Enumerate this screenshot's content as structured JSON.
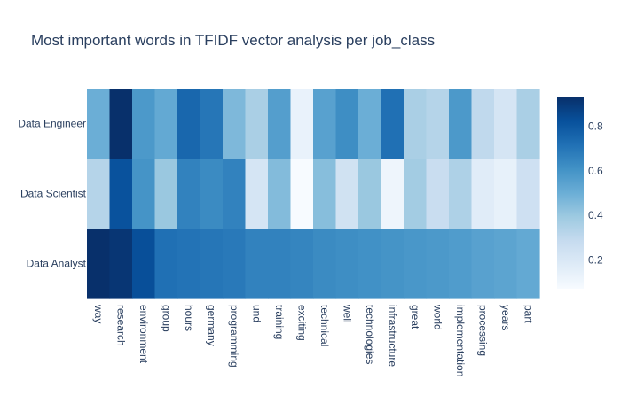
{
  "chart_data": {
    "type": "heatmap",
    "title": "Most important words in TFIDF vector analysis per job_class",
    "x": [
      "way",
      "research",
      "environment",
      "group",
      "hours",
      "germany",
      "programming",
      "und",
      "training",
      "exciting",
      "technical",
      "well",
      "technologies",
      "infrastructure",
      "great",
      "world",
      "implementation",
      "processing",
      "years",
      "part"
    ],
    "y": [
      "Data Engineer",
      "Data Scientist",
      "Data Analyst"
    ],
    "z": [
      [
        0.5,
        0.93,
        0.58,
        0.52,
        0.75,
        0.7,
        0.46,
        0.36,
        0.56,
        0.13,
        0.55,
        0.62,
        0.5,
        0.72,
        0.36,
        0.33,
        0.58,
        0.3,
        0.22,
        0.36
      ],
      [
        0.33,
        0.82,
        0.6,
        0.4,
        0.66,
        0.63,
        0.66,
        0.22,
        0.45,
        0.07,
        0.44,
        0.24,
        0.4,
        0.11,
        0.38,
        0.27,
        0.35,
        0.17,
        0.14,
        0.25
      ],
      [
        0.93,
        0.91,
        0.83,
        0.72,
        0.71,
        0.7,
        0.69,
        0.66,
        0.66,
        0.65,
        0.63,
        0.62,
        0.61,
        0.6,
        0.59,
        0.58,
        0.57,
        0.55,
        0.54,
        0.52
      ]
    ],
    "zmin": 0.07,
    "zmax": 0.93,
    "colorscale": "Blues",
    "colorbar_ticks": [
      "0.2",
      "0.4",
      "0.6",
      "0.8"
    ],
    "colorbar_tick_values": [
      0.2,
      0.4,
      0.6,
      0.8
    ],
    "legend_placement": "right",
    "grid": false,
    "colors": {
      "title": "#2a3f5f",
      "tick": "#2a3f5f",
      "scale": [
        "#f7fbff",
        "#deebf7",
        "#c6dbef",
        "#9ecae1",
        "#6baed6",
        "#4292c6",
        "#2171b5",
        "#08519c",
        "#08306b"
      ]
    }
  }
}
